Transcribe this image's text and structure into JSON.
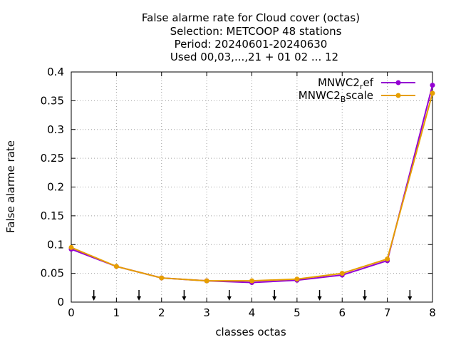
{
  "chart_data": {
    "type": "line",
    "title_lines": [
      "False alarme rate  for Cloud cover (octas)",
      "Selection: METCOOP     48 stations",
      "Period: 20240601-20240630",
      "Used 00,03,...,21 + 01 02 ... 12"
    ],
    "xlabel": "classes octas",
    "ylabel": "False alarme rate",
    "xlim": [
      0,
      8
    ],
    "ylim": [
      0,
      0.4
    ],
    "xticks": [
      "0",
      "1",
      "2",
      "3",
      "4",
      "5",
      "6",
      "7",
      "8"
    ],
    "yticks": [
      "0",
      "0.05",
      "0.1",
      "0.15",
      "0.2",
      "0.25",
      "0.3",
      "0.35",
      "0.4"
    ],
    "grid": true,
    "legend_position": "top-right",
    "arrow_markers_x": [
      0.5,
      1.5,
      2.5,
      3.5,
      4.5,
      5.5,
      6.5,
      7.5
    ],
    "x": [
      0,
      1,
      2,
      3,
      4,
      5,
      6,
      7,
      8
    ],
    "series": [
      {
        "name": "MNWC2_ref",
        "legend_main": "MNWC2",
        "legend_sub": "r",
        "legend_tail": "ef",
        "color": "#9400d3",
        "values": [
          0.092,
          0.062,
          0.042,
          0.037,
          0.034,
          0.038,
          0.047,
          0.072,
          0.377
        ]
      },
      {
        "name": "MNWC2_Bscale",
        "legend_main": "MNWC2",
        "legend_sub": "B",
        "legend_tail": "scale",
        "color": "#e69f00",
        "values": [
          0.095,
          0.062,
          0.042,
          0.037,
          0.037,
          0.04,
          0.05,
          0.075,
          0.363
        ]
      }
    ]
  }
}
